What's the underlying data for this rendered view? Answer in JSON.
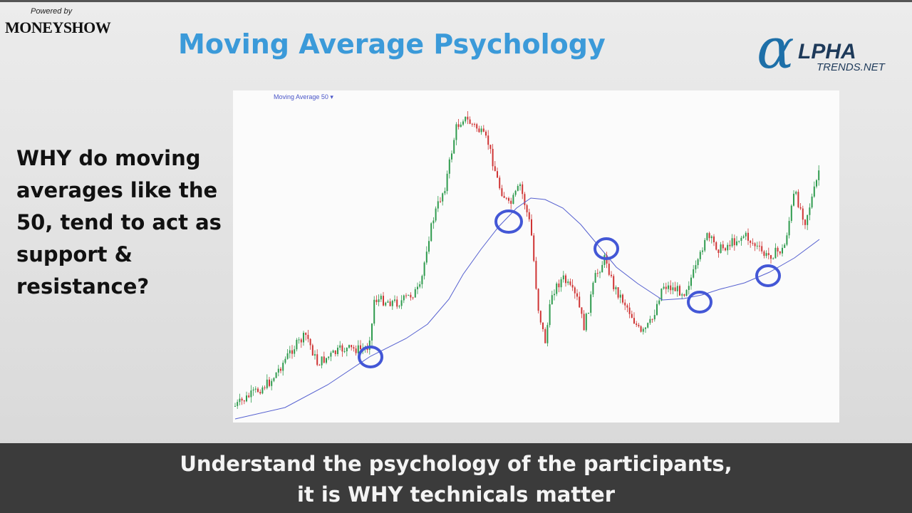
{
  "header": {
    "powered_by": "Powered by",
    "brand": "MONEYSHOW",
    "title": "Moving Average Psychology",
    "logo": {
      "mark": "α",
      "word": "LPHA",
      "sub": "TRENDS.NET"
    }
  },
  "chart": {
    "legend": "Moving Average 50 ▾"
  },
  "question": [
    "WHY do moving",
    "averages like the",
    "50, tend to act as",
    "support &",
    "resistance?"
  ],
  "caption": [
    "Understand the psychology of the participants,",
    "it is WHY technicals matter"
  ]
}
